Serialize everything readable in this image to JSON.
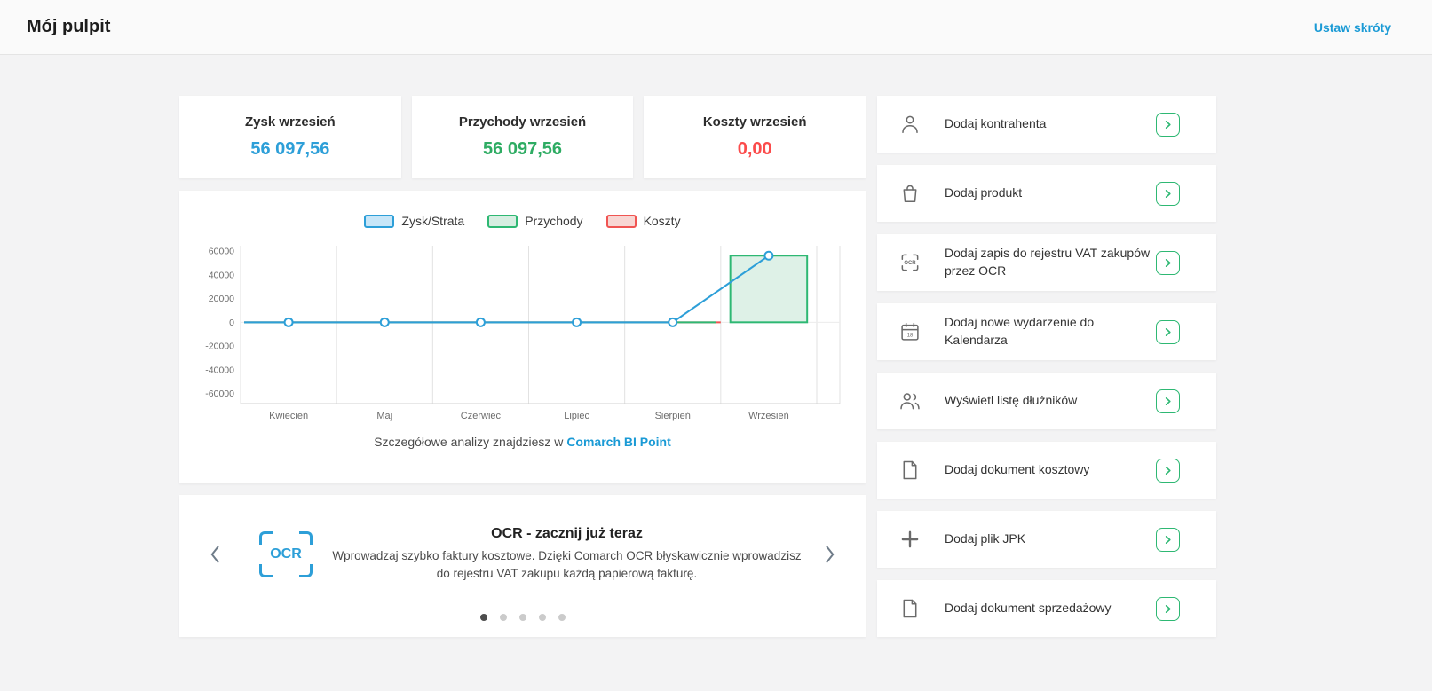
{
  "header": {
    "title": "Mój pulpit",
    "shortcut_link": "Ustaw skróty"
  },
  "colors": {
    "accent_blue": "#2d9fd8",
    "accent_green": "#2eb873",
    "accent_red": "#fb4b4b",
    "link": "#1a9ad5"
  },
  "kpis": [
    {
      "label": "Zysk wrzesień",
      "value": "56 097,56",
      "color": "#2d9fd8"
    },
    {
      "label": "Przychody wrzesień",
      "value": "56 097,56",
      "color": "#2eac63"
    },
    {
      "label": "Koszty wrzesień",
      "value": "0,00",
      "color": "#fb4b4b"
    }
  ],
  "chart_data": {
    "type": "line+bar",
    "categories": [
      "Kwiecień",
      "Maj",
      "Czerwiec",
      "Lipiec",
      "Sierpień",
      "Wrzesień"
    ],
    "series": [
      {
        "name": "Zysk/Strata",
        "type": "line",
        "color": "#2d9fd8",
        "fill": "#c7e6f8",
        "values": [
          0,
          0,
          0,
          0,
          0,
          56097.56
        ]
      },
      {
        "name": "Przychody",
        "type": "bar",
        "color": "#2eb873",
        "fill": "#d6eee1",
        "values": [
          0,
          0,
          0,
          0,
          0,
          56097.56
        ]
      },
      {
        "name": "Koszty",
        "type": "line",
        "color": "#f05452",
        "fill": "#f8d6d3",
        "values": [
          0,
          0,
          0,
          0,
          0,
          0
        ]
      }
    ],
    "yticks": [
      60000,
      40000,
      20000,
      0,
      -20000,
      -40000,
      -60000
    ],
    "ylim": [
      -68500,
      64500
    ],
    "grid": true,
    "legend_position": "top"
  },
  "chart_footer": {
    "text": "Szczegółowe analizy znajdziesz w",
    "link": "Comarch BI Point"
  },
  "carousel": {
    "icon_label": "OCR",
    "title": "OCR - zacznij już teraz",
    "description": "Wprowadzaj szybko faktury kosztowe. Dzięki Comarch OCR błyskawicznie wprowadzisz do rejestru VAT zakupu każdą papierową fakturę.",
    "dots": 5,
    "active_dot": 0
  },
  "actions": [
    {
      "label": "Dodaj kontrahenta",
      "icon": "person-icon"
    },
    {
      "label": "Dodaj produkt",
      "icon": "bag-icon"
    },
    {
      "label": "Dodaj zapis do rejestru VAT zakupów przez OCR",
      "icon": "ocr-icon"
    },
    {
      "label": "Dodaj nowe wydarzenie do Kalendarza",
      "icon": "calendar-icon"
    },
    {
      "label": "Wyświetl listę dłużników",
      "icon": "people-icon"
    },
    {
      "label": "Dodaj dokument kosztowy",
      "icon": "document-icon"
    },
    {
      "label": "Dodaj plik JPK",
      "icon": "plus-icon"
    },
    {
      "label": "Dodaj dokument sprzedażowy",
      "icon": "document-icon"
    }
  ]
}
